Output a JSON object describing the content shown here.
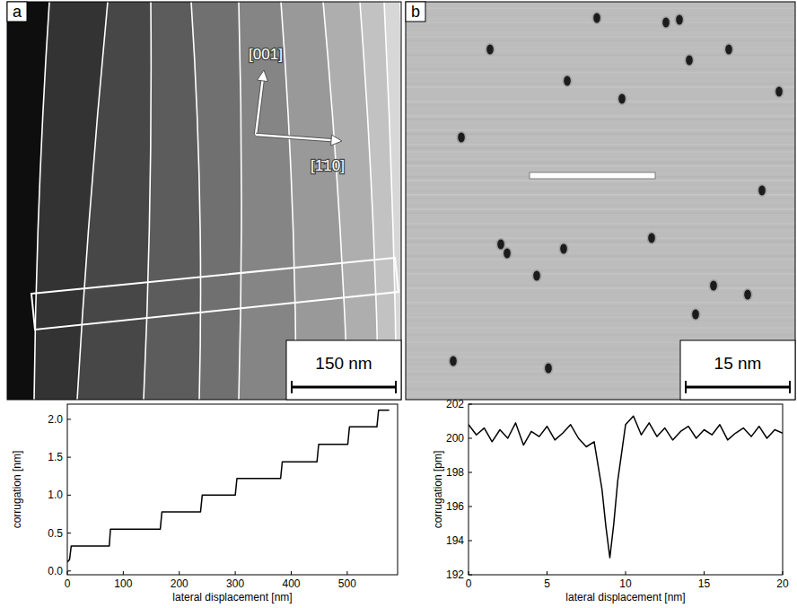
{
  "panels": [
    {
      "label": "a",
      "scale_bar": "150 nm",
      "directions": [
        "[001]",
        "[1̄10]"
      ]
    },
    {
      "label": "b",
      "scale_bar": "15 nm"
    }
  ],
  "chart_data": [
    {
      "type": "line",
      "color": "#000000",
      "x": [
        0,
        4,
        7,
        75,
        77,
        166,
        169,
        238,
        241,
        300,
        303,
        381,
        384,
        446,
        449,
        501,
        504,
        553,
        556,
        575
      ],
      "values": [
        0.12,
        0.15,
        0.33,
        0.33,
        0.55,
        0.55,
        0.78,
        0.78,
        1.0,
        1.0,
        1.22,
        1.22,
        1.44,
        1.44,
        1.67,
        1.67,
        1.9,
        1.9,
        2.12,
        2.12
      ],
      "xlabel": "lateral displacement [nm]",
      "ylabel": "corrugation [nm]",
      "xlim": [
        0,
        590
      ],
      "ylim": [
        -0.05,
        2.2
      ],
      "xticks": [
        0,
        100,
        200,
        300,
        400,
        500
      ],
      "yticks": [
        {
          "value": 0,
          "label": "0.0"
        },
        {
          "value": 0.5,
          "label": "0.5"
        },
        {
          "value": 1,
          "label": "1.0"
        },
        {
          "value": 1.5,
          "label": "1.5"
        },
        {
          "value": 2,
          "label": "2.0"
        }
      ]
    },
    {
      "type": "line",
      "color": "#000000",
      "x": [
        0,
        0.5,
        1,
        1.5,
        2,
        2.5,
        3,
        3.5,
        4,
        4.5,
        5,
        5.5,
        6,
        6.5,
        7,
        7.5,
        8,
        8.5,
        8.75,
        9,
        9.25,
        9.5,
        10,
        10.5,
        11,
        11.5,
        12,
        12.5,
        13,
        13.5,
        14,
        14.5,
        15,
        15.5,
        16,
        16.5,
        17,
        17.5,
        18,
        18.5,
        19,
        19.5,
        20
      ],
      "values": [
        200.8,
        200.2,
        200.6,
        199.8,
        200.5,
        200.0,
        200.9,
        199.6,
        200.4,
        200.1,
        200.7,
        199.9,
        200.3,
        200.8,
        200.0,
        199.5,
        199.8,
        197.0,
        194.8,
        193.0,
        195.0,
        197.5,
        200.8,
        201.3,
        200.2,
        200.9,
        200.1,
        200.6,
        199.9,
        200.4,
        200.7,
        200.0,
        200.5,
        200.2,
        200.8,
        199.9,
        200.3,
        200.6,
        200.1,
        200.7,
        200.0,
        200.5,
        200.3
      ],
      "xlabel": "lateral displacement [nm]",
      "ylabel": "corrugation [pm]",
      "xlim": [
        0,
        20
      ],
      "ylim": [
        192,
        202
      ],
      "xticks": [
        0,
        5,
        10,
        15,
        20
      ],
      "yticks": [
        192,
        194,
        196,
        198,
        200,
        202
      ]
    }
  ]
}
